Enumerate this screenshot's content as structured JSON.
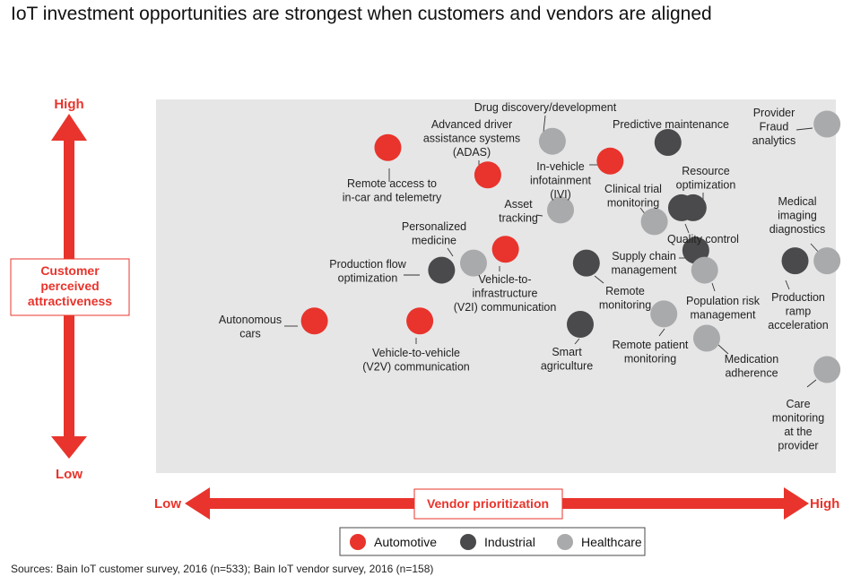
{
  "title": "IoT investment opportunities are strongest when customers and vendors are aligned",
  "source": "Sources: Bain IoT customer survey, 2016 (n=533); Bain IoT vendor survey, 2016 (n=158)",
  "colors": {
    "Automotive": "#e8342c",
    "Industrial": "#4a4a4c",
    "Healthcare": "#a9aaac",
    "accent": "#e8342c",
    "plot_bg": "#e6e6e7"
  },
  "chart_data": {
    "type": "scatter",
    "title": "IoT investment opportunities are strongest when customers and vendors are aligned",
    "xlabel": "Vendor prioritization",
    "ylabel": "Customer perceived attractiveness",
    "x_low_label": "Low",
    "x_high_label": "High",
    "y_low_label": "Low",
    "y_high_label": "High",
    "xlim": [
      0,
      1
    ],
    "ylim": [
      0,
      1
    ],
    "legend_position": "bottom-center",
    "legend": [
      "Automotive",
      "Industrial",
      "Healthcare"
    ],
    "points": [
      {
        "label": "Drug discovery/development",
        "category": "Healthcare",
        "x": 0.583,
        "y": 0.888
      },
      {
        "label": "Advanced driver assistance systems (ADAS)",
        "category": "Automotive",
        "x": 0.488,
        "y": 0.798
      },
      {
        "label": "Remote access to in-car and telemetry",
        "category": "Automotive",
        "x": 0.341,
        "y": 0.871
      },
      {
        "label": "In-vehicle infotainment (IVI)",
        "category": "Automotive",
        "x": 0.668,
        "y": 0.835
      },
      {
        "label": "Predictive maintenance",
        "category": "Industrial",
        "x": 0.753,
        "y": 0.885
      },
      {
        "label": "Provider Fraud analytics",
        "category": "Healthcare",
        "x": 0.987,
        "y": 0.934
      },
      {
        "label": "Asset tracking",
        "category": "Healthcare",
        "x": 0.595,
        "y": 0.704
      },
      {
        "label": "Clinical trial monitoring",
        "category": "Healthcare",
        "x": 0.733,
        "y": 0.673
      },
      {
        "label": "Resource optimization",
        "category": "Industrial",
        "x": 0.79,
        "y": 0.71
      },
      {
        "label": "Quality control",
        "category": "Industrial",
        "x": 0.773,
        "y": 0.71
      },
      {
        "label": "Personalized medicine",
        "category": "Healthcare",
        "x": 0.467,
        "y": 0.562
      },
      {
        "label": "Production flow optimization",
        "category": "Industrial",
        "x": 0.42,
        "y": 0.543
      },
      {
        "label": "Vehicle-to-infrastructure (V2I) communication",
        "category": "Automotive",
        "x": 0.514,
        "y": 0.599
      },
      {
        "label": "Remote monitoring",
        "category": "Industrial",
        "x": 0.633,
        "y": 0.562
      },
      {
        "label": "Supply chain management",
        "category": "Industrial",
        "x": 0.794,
        "y": 0.596
      },
      {
        "label": "Population risk management",
        "category": "Healthcare",
        "x": 0.807,
        "y": 0.543
      },
      {
        "label": "Medical imaging diagnostics",
        "category": "Healthcare",
        "x": 0.987,
        "y": 0.568
      },
      {
        "label": "Production ramp acceleration",
        "category": "Industrial",
        "x": 0.94,
        "y": 0.568
      },
      {
        "label": "Autonomous cars",
        "category": "Automotive",
        "x": 0.233,
        "y": 0.407
      },
      {
        "label": "Vehicle-to-vehicle (V2V) communication",
        "category": "Automotive",
        "x": 0.388,
        "y": 0.407
      },
      {
        "label": "Smart agriculture",
        "category": "Industrial",
        "x": 0.624,
        "y": 0.398
      },
      {
        "label": "Remote patient monitoring",
        "category": "Healthcare",
        "x": 0.747,
        "y": 0.426
      },
      {
        "label": "Medication adherence",
        "category": "Healthcare",
        "x": 0.81,
        "y": 0.361
      },
      {
        "label": "Care monitoring at the provider",
        "category": "Healthcare",
        "x": 0.987,
        "y": 0.277
      }
    ]
  },
  "annotations": [
    {
      "lines": [
        "Drug discovery/development"
      ]
    },
    {
      "lines": [
        "Advanced driver",
        "assistance systems",
        "(ADAS)"
      ]
    },
    {
      "lines": [
        "Remote access to",
        "in-car and telemetry"
      ]
    },
    {
      "lines": [
        "In-vehicle",
        "infotainment",
        "(IVI)"
      ]
    },
    {
      "lines": [
        "Predictive maintenance"
      ]
    },
    {
      "lines": [
        "Provider",
        "Fraud",
        "analytics"
      ]
    },
    {
      "lines": [
        "Asset",
        "tracking"
      ]
    },
    {
      "lines": [
        "Clinical trial",
        "monitoring"
      ]
    },
    {
      "lines": [
        "Resource",
        "optimization"
      ]
    },
    {
      "lines": [
        "Quality control"
      ]
    },
    {
      "lines": [
        "Personalized",
        "medicine"
      ]
    },
    {
      "lines": [
        "Production flow",
        "optimization"
      ]
    },
    {
      "lines": [
        "Vehicle-to-",
        "infrastructure",
        "(V2I) communication"
      ]
    },
    {
      "lines": [
        "Remote",
        "monitoring"
      ]
    },
    {
      "lines": [
        "Supply chain",
        "management"
      ]
    },
    {
      "lines": [
        "Population risk",
        "management"
      ]
    },
    {
      "lines": [
        "Medical",
        "imaging",
        "diagnostics"
      ]
    },
    {
      "lines": [
        "Production",
        "ramp",
        "acceleration"
      ]
    },
    {
      "lines": [
        "Autonomous",
        "cars"
      ]
    },
    {
      "lines": [
        "Vehicle-to-vehicle",
        "(V2V) communication"
      ]
    },
    {
      "lines": [
        "Smart",
        "agriculture"
      ]
    },
    {
      "lines": [
        "Remote patient",
        "monitoring"
      ]
    },
    {
      "lines": [
        "Medication",
        "adherence"
      ]
    },
    {
      "lines": [
        "Care",
        "monitoring",
        "at the",
        "provider"
      ]
    }
  ]
}
